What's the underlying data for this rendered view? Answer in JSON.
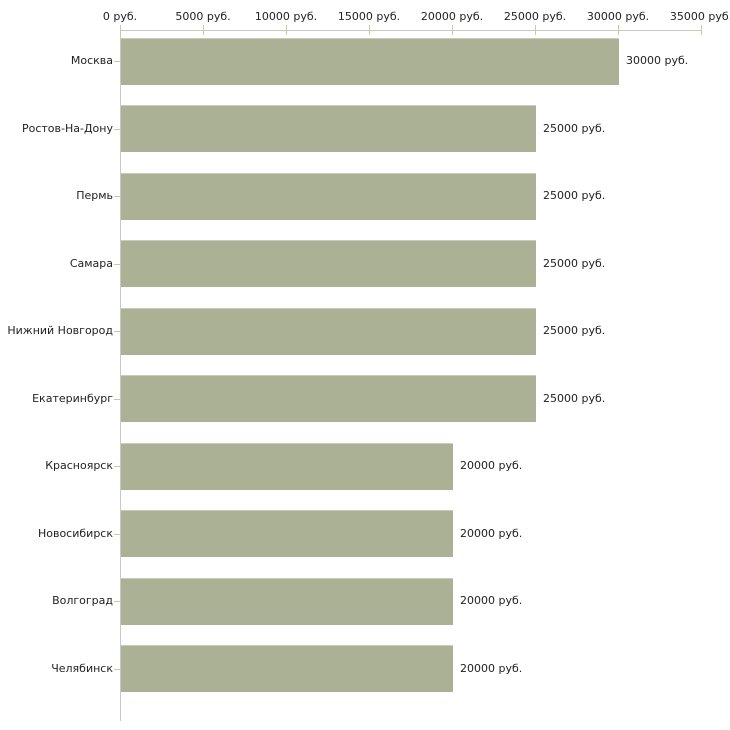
{
  "chart_data": {
    "type": "bar",
    "orientation": "horizontal",
    "title": "",
    "xlabel": "",
    "ylabel": "",
    "xlim": [
      0,
      35000
    ],
    "grid": false,
    "legend": null,
    "unit_suffix": " руб.",
    "categories": [
      "Москва",
      "Ростов-На-Дону",
      "Пермь",
      "Самара",
      "Нижний Новгород",
      "Екатеринбург",
      "Красноярск",
      "Новосибирск",
      "Волгоград",
      "Челябинск"
    ],
    "values": [
      30000,
      25000,
      25000,
      25000,
      25000,
      25000,
      20000,
      20000,
      20000,
      20000
    ],
    "value_labels": [
      "30000 руб.",
      "25000 руб.",
      "25000 руб.",
      "25000 руб.",
      "25000 руб.",
      "25000 руб.",
      "20000 руб.",
      "20000 руб.",
      "20000 руб.",
      "20000 руб."
    ],
    "x_ticks": [
      {
        "value": 0,
        "label": "0 руб."
      },
      {
        "value": 5000,
        "label": "5000 руб."
      },
      {
        "value": 10000,
        "label": "10000 руб."
      },
      {
        "value": 15000,
        "label": "15000 руб."
      },
      {
        "value": 20000,
        "label": "20000 руб."
      },
      {
        "value": 25000,
        "label": "25000 руб."
      },
      {
        "value": 30000,
        "label": "30000 руб."
      },
      {
        "value": 35000,
        "label": "35000 руб."
      }
    ],
    "colors": {
      "bar": "#abb194",
      "axis": "#c8c8c8",
      "tick": "#cccc99",
      "text": "#222222",
      "background": "#ffffff"
    }
  }
}
